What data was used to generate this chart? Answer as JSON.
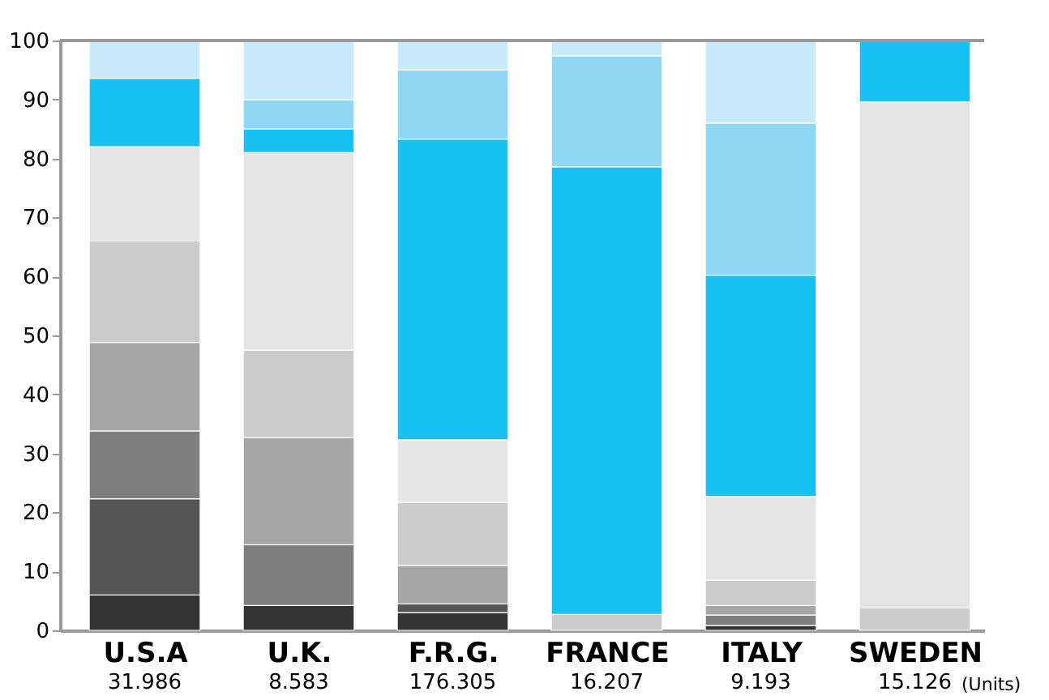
{
  "chart_data": {
    "type": "bar",
    "stacked": true,
    "categories": [
      "U.S.A",
      "U.K.",
      "F.R.G.",
      "FRANCE",
      "ITALY",
      "SWEDEN"
    ],
    "series": [
      {
        "color": "#333333",
        "values": [
          6,
          4.2,
          3,
          0,
          0.8,
          0
        ]
      },
      {
        "color": "#555555",
        "values": [
          16.3,
          0,
          1.5,
          0,
          0,
          0
        ]
      },
      {
        "color": "#7f7f7f",
        "values": [
          11.5,
          10.3,
          0,
          0,
          1.8,
          0
        ]
      },
      {
        "color": "#a6a6a6",
        "values": [
          15,
          18.2,
          6.5,
          0,
          1.6,
          0
        ]
      },
      {
        "color": "#cbcbcb",
        "values": [
          17.2,
          14.8,
          10.7,
          2.7,
          4.3,
          3.8
        ]
      },
      {
        "color": "#e5e5e5",
        "values": [
          16,
          33.5,
          10.6,
          0,
          14.2,
          85.8
        ]
      },
      {
        "color": "#17c1f2",
        "values": [
          11.6,
          4,
          51,
          75.9,
          37.5,
          10.4
        ]
      },
      {
        "color": "#8ed8f6",
        "values": [
          0,
          5,
          11.7,
          18.8,
          25.8,
          0
        ]
      },
      {
        "color": "#c8eafa",
        "values": [
          6.4,
          10,
          5,
          2.6,
          14,
          0
        ]
      }
    ],
    "ylim": [
      0,
      100
    ],
    "yticks": [
      0,
      10,
      20,
      30,
      40,
      50,
      60,
      70,
      80,
      90,
      100
    ],
    "grid": false,
    "annotations": [
      "31.986",
      "8.583",
      "176.305",
      "16.207",
      "9.193",
      "15.126",
      "(Units)"
    ]
  }
}
